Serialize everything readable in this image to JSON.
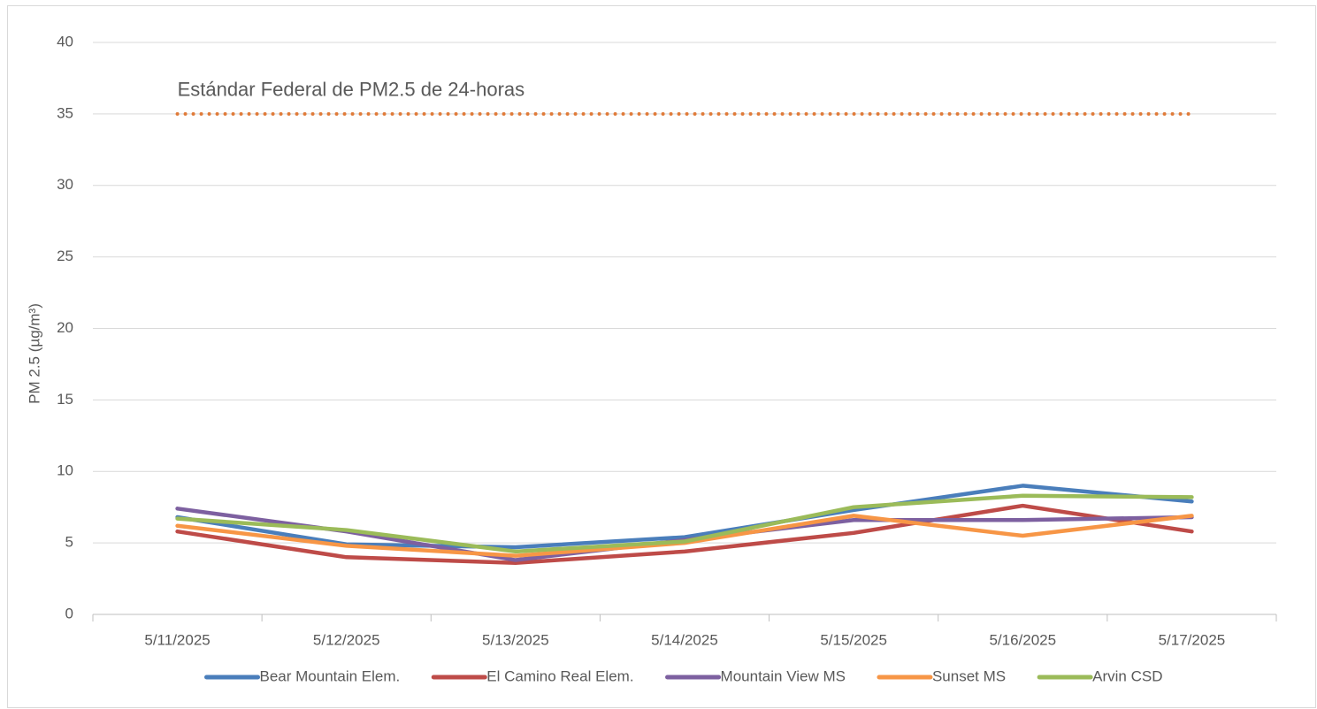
{
  "chart_data": {
    "type": "line",
    "y_label": "PM 2.5 (µg/m³)",
    "categories": [
      "5/11/2025",
      "5/12/2025",
      "5/13/2025",
      "5/14/2025",
      "5/15/2025",
      "5/16/2025",
      "5/17/2025"
    ],
    "series": [
      {
        "name": "Bear Mountain Elem.",
        "color": "#4a7ebb",
        "values": [
          6.8,
          4.9,
          4.7,
          5.4,
          7.3,
          9.0,
          7.9
        ]
      },
      {
        "name": "El Camino Real Elem.",
        "color": "#be4b48",
        "values": [
          5.8,
          4.0,
          3.6,
          4.4,
          5.7,
          7.6,
          5.8
        ]
      },
      {
        "name": "Mountain View MS",
        "color": "#7d60a0",
        "values": [
          7.4,
          5.8,
          3.8,
          5.2,
          6.6,
          6.6,
          6.8
        ]
      },
      {
        "name": "Sunset MS",
        "color": "#f79646",
        "values": [
          6.2,
          4.8,
          4.1,
          5.0,
          6.9,
          5.5,
          6.9
        ]
      },
      {
        "name": "Arvin CSD",
        "color": "#9bbb59",
        "values": [
          6.7,
          5.9,
          4.4,
          5.1,
          7.5,
          8.3,
          8.2
        ]
      }
    ],
    "reference_line": {
      "value": 35,
      "label": "Estándar Federal de PM2.5 de 24-horas",
      "color": "#e07b39"
    },
    "ylim": [
      0,
      40
    ],
    "yticks": [
      0,
      5,
      10,
      15,
      20,
      25,
      30,
      35,
      40
    ],
    "grid": true,
    "legend": "bottom"
  }
}
